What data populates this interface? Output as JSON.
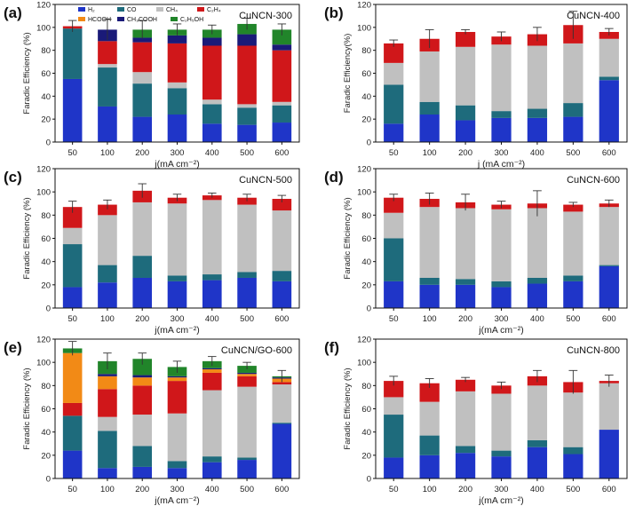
{
  "figure": {
    "title": "Faradaic efficiency of CuNCN catalysts at different current densities",
    "colors": {
      "H2": "#1f35c8",
      "CO": "#1e6b7c",
      "CH4": "#c0c0c0",
      "C2H4": "#d0171a",
      "HCOOH": "#f28a16",
      "CH3COOH": "#1a1a78",
      "C2H5OH": "#21852a"
    },
    "legend": {
      "H2": "H₂",
      "CO": "CO",
      "CH4": "CH₄",
      "C2H4": "C₂H₄",
      "HCOOH": "HCOOH",
      "CH3COOH": "CH₃COOH",
      "C2H5OH": "C₂H₅OH"
    }
  },
  "chart_data": [
    {
      "type": "bar",
      "panel_label": "(a)",
      "title": "CuNCN-300",
      "xlabel": "j(mA cm⁻²)",
      "ylabel": "Faradic Efficiency (%)",
      "ylim": [
        0,
        120
      ],
      "yticks": [
        0,
        20,
        40,
        60,
        80,
        100,
        120
      ],
      "categories": [
        "50",
        "100",
        "200",
        "300",
        "400",
        "500",
        "600"
      ],
      "series": [
        {
          "name": "H2",
          "values": [
            55,
            31,
            22,
            24,
            16,
            15,
            17
          ]
        },
        {
          "name": "CO",
          "values": [
            44,
            34,
            29,
            23,
            17,
            15,
            15
          ]
        },
        {
          "name": "CH4",
          "values": [
            0,
            3,
            10,
            5,
            4,
            3,
            3
          ]
        },
        {
          "name": "C2H4",
          "values": [
            2,
            20,
            26,
            34,
            47,
            51,
            45
          ]
        },
        {
          "name": "HCOOH",
          "values": [
            0,
            0,
            0,
            0,
            0,
            0,
            0
          ]
        },
        {
          "name": "CH3COOH",
          "values": [
            0,
            10,
            4,
            7,
            7,
            10,
            5
          ]
        },
        {
          "name": "C2H5OH",
          "values": [
            0,
            0,
            7,
            5,
            7,
            9,
            13
          ]
        }
      ],
      "errors": [
        5,
        9,
        8,
        5,
        4,
        5,
        5
      ]
    },
    {
      "type": "bar",
      "panel_label": "(b)",
      "title": "CuNCN-400",
      "xlabel": "j (mA cm⁻²)",
      "ylabel": "Faradic Efficiency(%)",
      "ylim": [
        0,
        120
      ],
      "yticks": [
        0,
        20,
        40,
        60,
        80,
        100,
        120
      ],
      "categories": [
        "50",
        "100",
        "200",
        "300",
        "400",
        "500",
        "600"
      ],
      "series": [
        {
          "name": "H2",
          "values": [
            16,
            24,
            19,
            21,
            21,
            22,
            54
          ]
        },
        {
          "name": "CO",
          "values": [
            34,
            11,
            13,
            6,
            8,
            12,
            3
          ]
        },
        {
          "name": "CH4",
          "values": [
            19,
            44,
            51,
            58,
            55,
            52,
            33
          ]
        },
        {
          "name": "C2H4",
          "values": [
            17,
            11,
            13,
            7,
            10,
            16,
            6
          ]
        }
      ],
      "errors": [
        3,
        8,
        2,
        4,
        6,
        12,
        3
      ]
    },
    {
      "type": "bar",
      "panel_label": "(c)",
      "title": "CuNCN-500",
      "xlabel": "j(mA cm⁻²)",
      "ylabel": "Faradic Efficiency (%)",
      "ylim": [
        0,
        120
      ],
      "yticks": [
        0,
        20,
        40,
        60,
        80,
        100,
        120
      ],
      "categories": [
        "50",
        "100",
        "200",
        "300",
        "400",
        "500",
        "600"
      ],
      "series": [
        {
          "name": "H2",
          "values": [
            18,
            22,
            26,
            23,
            24,
            26,
            23
          ]
        },
        {
          "name": "CO",
          "values": [
            37,
            15,
            19,
            5,
            5,
            5,
            9
          ]
        },
        {
          "name": "CH4",
          "values": [
            14,
            43,
            46,
            62,
            64,
            58,
            52
          ]
        },
        {
          "name": "C2H4",
          "values": [
            18,
            9,
            10,
            5,
            4,
            6,
            10
          ]
        }
      ],
      "errors": [
        5,
        4,
        6,
        3,
        2,
        3,
        3
      ]
    },
    {
      "type": "bar",
      "panel_label": "(d)",
      "title": "CuNCN-600",
      "xlabel": "j(mA cm⁻²)",
      "ylabel": "Faradic Efficiency (%)",
      "ylim": [
        0,
        120
      ],
      "yticks": [
        0,
        20,
        40,
        60,
        80,
        100,
        120
      ],
      "categories": [
        "50",
        "100",
        "200",
        "300",
        "400",
        "500",
        "600"
      ],
      "series": [
        {
          "name": "H2",
          "values": [
            23,
            20,
            20,
            18,
            21,
            23,
            36
          ]
        },
        {
          "name": "CO",
          "values": [
            37,
            6,
            5,
            5,
            5,
            5,
            1
          ]
        },
        {
          "name": "CH4",
          "values": [
            22,
            61,
            61,
            62,
            60,
            55,
            50
          ]
        },
        {
          "name": "C2H4",
          "values": [
            13,
            7,
            5,
            4,
            4,
            6,
            3
          ]
        }
      ],
      "errors": [
        3,
        5,
        7,
        3,
        11,
        2,
        3
      ]
    },
    {
      "type": "bar",
      "panel_label": "(e)",
      "title": "CuNCN/GO-600",
      "xlabel": "j(mA cm⁻²)",
      "ylabel": "Faradic Efficiency (%)",
      "ylim": [
        0,
        120
      ],
      "yticks": [
        0,
        20,
        40,
        60,
        80,
        100,
        120
      ],
      "categories": [
        "50",
        "100",
        "200",
        "300",
        "400",
        "500",
        "600"
      ],
      "series": [
        {
          "name": "H2",
          "values": [
            24,
            9,
            10,
            9,
            14,
            16,
            47
          ]
        },
        {
          "name": "CO",
          "values": [
            30,
            32,
            18,
            6,
            5,
            2,
            1
          ]
        },
        {
          "name": "CH4",
          "values": [
            0,
            12,
            27,
            41,
            57,
            61,
            33
          ]
        },
        {
          "name": "C2H4",
          "values": [
            11,
            24,
            25,
            28,
            15,
            9,
            2
          ]
        },
        {
          "name": "HCOOH",
          "values": [
            43,
            11,
            7,
            3,
            3,
            2,
            3
          ]
        },
        {
          "name": "CH3COOH",
          "values": [
            0,
            2,
            2,
            1,
            1,
            1,
            1
          ]
        },
        {
          "name": "C2H5OH",
          "values": [
            4,
            11,
            14,
            8,
            6,
            6,
            1
          ]
        }
      ],
      "errors": [
        6,
        7,
        5,
        5,
        4,
        3,
        5
      ]
    },
    {
      "type": "bar",
      "panel_label": "(f)",
      "title": "CuNCN-800",
      "xlabel": "j(mA cm⁻²)",
      "ylabel": "Faradic Efficiency (%)",
      "ylim": [
        0,
        120
      ],
      "yticks": [
        0,
        20,
        40,
        60,
        80,
        100,
        120
      ],
      "categories": [
        "50",
        "100",
        "200",
        "300",
        "400",
        "500",
        "600"
      ],
      "series": [
        {
          "name": "H2",
          "values": [
            18,
            20,
            22,
            19,
            27,
            21,
            42
          ]
        },
        {
          "name": "CO",
          "values": [
            37,
            17,
            6,
            5,
            6,
            6,
            0
          ]
        },
        {
          "name": "CH4",
          "values": [
            15,
            29,
            47,
            49,
            47,
            47,
            40
          ]
        },
        {
          "name": "C2H4",
          "values": [
            14,
            16,
            10,
            7,
            8,
            9,
            2
          ]
        }
      ],
      "errors": [
        4,
        4,
        2,
        3,
        5,
        10,
        5
      ]
    }
  ]
}
